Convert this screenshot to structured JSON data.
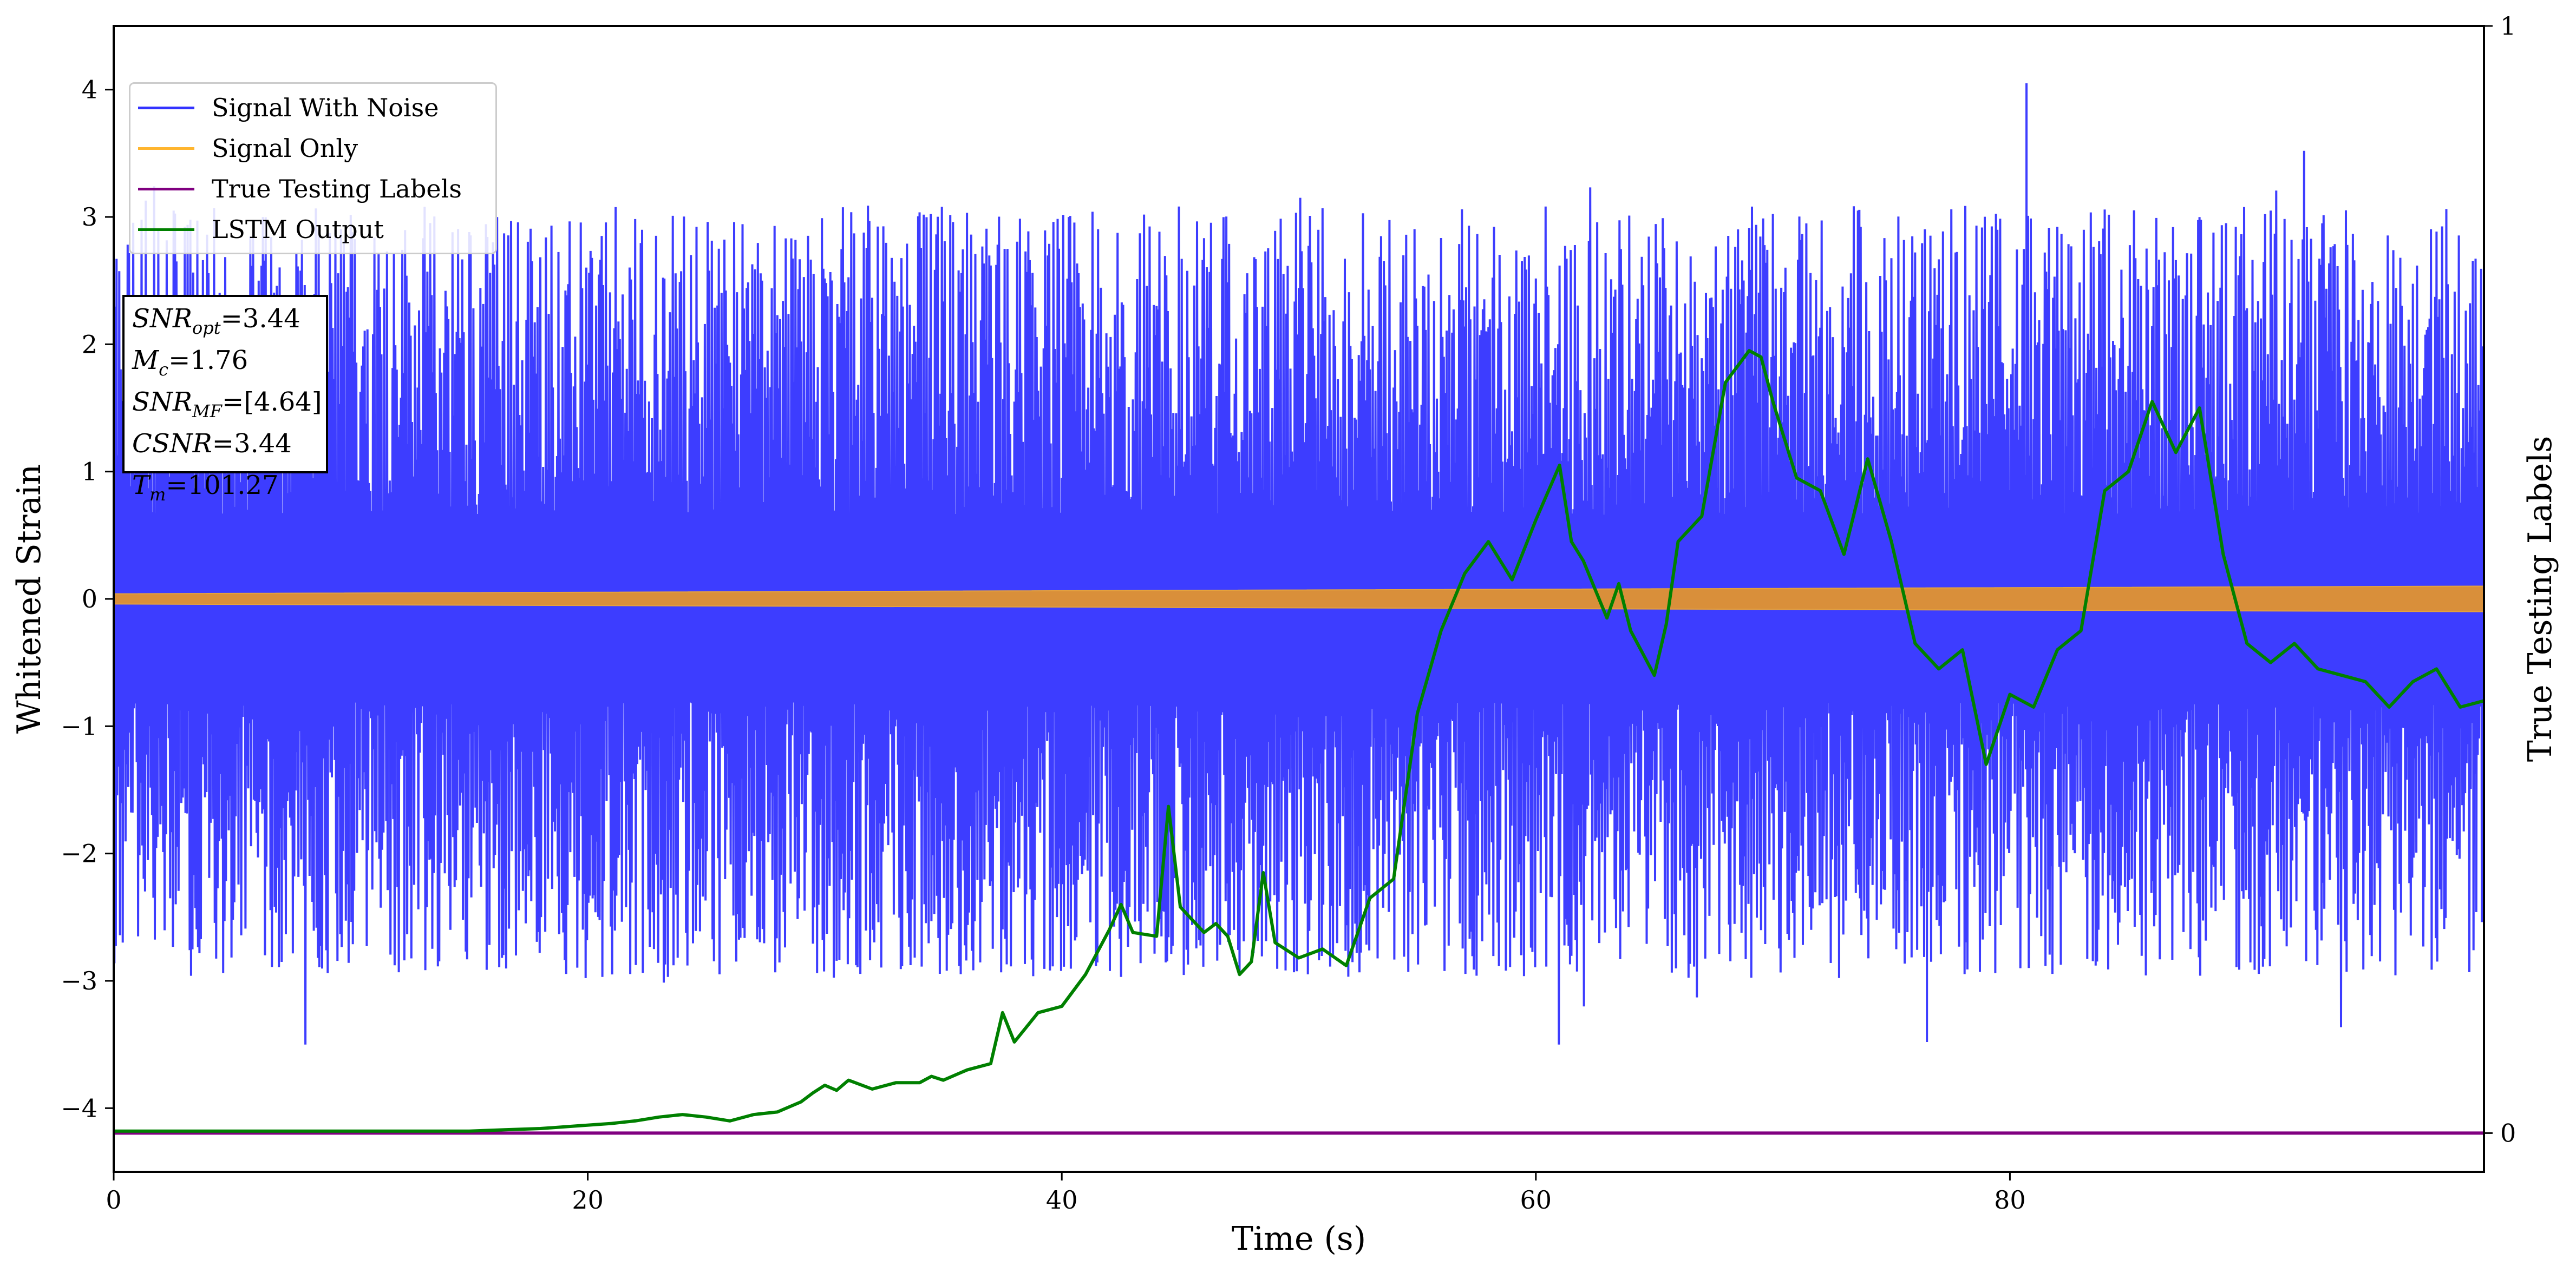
{
  "chart_data": {
    "type": "line",
    "xlabel": "Time (s)",
    "ylabel": "Whitened Strain",
    "y2label": "True Testing Labels",
    "xlim": [
      0,
      100
    ],
    "ylim": [
      -4.5,
      4.5
    ],
    "y2lim": [
      -0.035,
      1
    ],
    "x_ticks": [
      0,
      20,
      40,
      60,
      80
    ],
    "x_tick_labels": [
      "0",
      "20",
      "40",
      "60",
      "80"
    ],
    "y_ticks": [
      -4,
      -3,
      -2,
      -1,
      0,
      1,
      2,
      3,
      4
    ],
    "y_tick_labels": [
      "−4",
      "−3",
      "−2",
      "−1",
      "0",
      "1",
      "2",
      "3",
      "4"
    ],
    "y2_ticks": [
      0,
      1
    ],
    "y2_tick_labels": [
      "0",
      "1"
    ],
    "grid": false,
    "legend_position": "top-left",
    "series": [
      {
        "name": "Signal With Noise",
        "color": "#3333ff",
        "axis": "left",
        "kind": "dense noisy signal",
        "core_band": [
          -0.9,
          1.2
        ],
        "spike_range": [
          -3.5,
          4.05
        ],
        "peak": {
          "x": 80.7,
          "y": 4.05
        },
        "trough": {
          "x": 76.5,
          "y": -3.48
        }
      },
      {
        "name": "Signal Only",
        "color": "#e6a23c",
        "axis": "left",
        "kind": "narrow band around zero",
        "x": [
          0,
          100
        ],
        "amplitude": [
          0.04,
          0.1
        ]
      },
      {
        "name": "True Testing Labels",
        "color": "#800080",
        "axis": "right",
        "x": [
          0,
          100
        ],
        "values": [
          0,
          0
        ]
      },
      {
        "name": "LSTM Output",
        "color": "#008000",
        "axis": "left",
        "x": [
          0,
          15,
          16.5,
          18,
          19.5,
          21,
          22,
          23,
          24,
          25,
          26,
          27,
          28,
          29,
          29.5,
          30,
          30.5,
          31,
          32,
          33,
          34,
          34.5,
          35,
          36,
          37,
          37.5,
          38,
          39,
          40,
          41,
          42,
          42.5,
          43,
          44,
          44.5,
          45,
          46,
          46.5,
          47,
          47.5,
          48,
          48.5,
          49,
          50,
          51,
          52,
          53,
          54,
          55,
          56,
          57,
          58,
          59,
          60,
          61,
          61.5,
          62,
          63,
          63.5,
          64,
          65,
          65.5,
          66,
          67,
          68,
          69,
          69.5,
          70,
          71,
          72,
          73,
          74,
          75,
          76,
          77,
          78,
          79,
          80,
          81,
          82,
          83,
          84,
          85,
          86,
          87,
          88,
          89,
          90,
          91,
          92,
          93,
          94,
          95,
          96,
          97,
          98,
          99,
          100
        ],
        "values": [
          -4.18,
          -4.18,
          -4.17,
          -4.16,
          -4.14,
          -4.12,
          -4.1,
          -4.07,
          -4.05,
          -4.07,
          -4.1,
          -4.05,
          -4.03,
          -3.95,
          -3.88,
          -3.82,
          -3.86,
          -3.78,
          -3.85,
          -3.8,
          -3.8,
          -3.75,
          -3.78,
          -3.7,
          -3.65,
          -3.25,
          -3.48,
          -3.25,
          -3.2,
          -2.95,
          -2.6,
          -2.4,
          -2.62,
          -2.65,
          -1.63,
          -2.42,
          -2.62,
          -2.55,
          -2.65,
          -2.95,
          -2.85,
          -2.15,
          -2.7,
          -2.82,
          -2.75,
          -2.88,
          -2.35,
          -2.2,
          -0.9,
          -0.25,
          0.2,
          0.45,
          0.15,
          0.62,
          1.05,
          0.45,
          0.3,
          -0.15,
          0.12,
          -0.25,
          -0.6,
          -0.2,
          0.45,
          0.65,
          1.7,
          1.95,
          1.9,
          1.55,
          0.95,
          0.85,
          0.35,
          1.1,
          0.45,
          -0.35,
          -0.55,
          -0.4,
          -1.3,
          -0.75,
          -0.85,
          -0.4,
          -0.25,
          0.85,
          1.0,
          1.55,
          1.15,
          1.5,
          0.35,
          -0.35,
          -0.5,
          -0.35,
          -0.55,
          -0.6,
          -0.65,
          -0.85,
          -0.65,
          -0.55,
          -0.85,
          -0.8
        ]
      }
    ],
    "annotation": [
      {
        "sym": "SNR",
        "sub": "opt",
        "val": "=3.44"
      },
      {
        "sym": "M",
        "sub": "c",
        "val": "=1.76"
      },
      {
        "sym": "SNR",
        "sub": "MF",
        "val": "=[4.64]"
      },
      {
        "sym": "CSNR",
        "sub": "",
        "val": "=3.44"
      },
      {
        "sym": "T",
        "sub": "m",
        "val": "=101.27"
      }
    ]
  }
}
